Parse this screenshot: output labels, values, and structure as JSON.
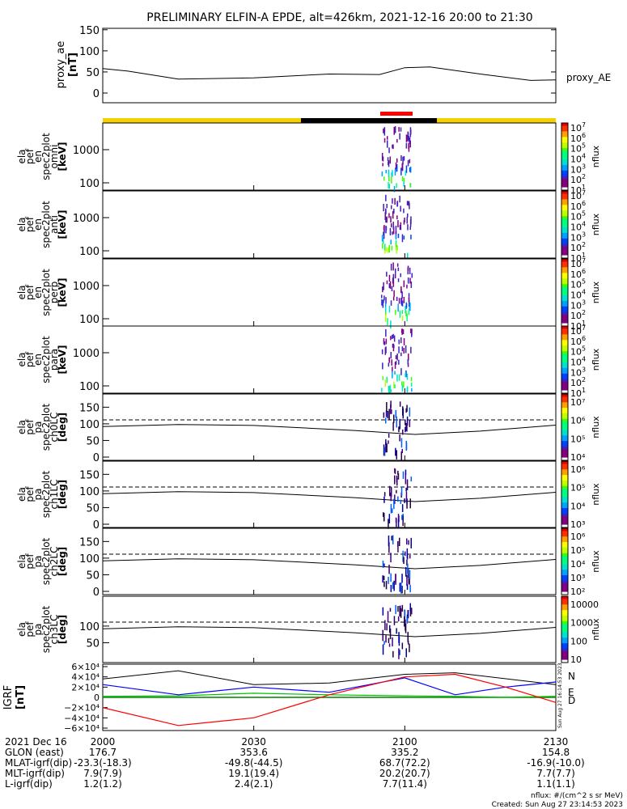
{
  "title": "PRELIMINARY ELFIN-A EPDE, alt=426km, 2021-12-16 20:00 to 21:30",
  "panels": {
    "proxy_ae": {
      "ylabel": [
        "proxy_ae",
        "[nT]"
      ],
      "yticks": [
        "150",
        "100",
        "50",
        "0"
      ],
      "series_label": "proxy_AE"
    },
    "energy": [
      {
        "ylabel": [
          "ela",
          "pef",
          "en",
          "spec2plot",
          "omni",
          "[keV]"
        ],
        "yticks": [
          "1000",
          "100"
        ],
        "cbar_exp": [
          "7",
          "6",
          "5",
          "4",
          "3",
          "2",
          "1"
        ],
        "cbar_label": "nflux"
      },
      {
        "ylabel": [
          "ela",
          "pef",
          "en",
          "spec2plot",
          "anti",
          "[keV]"
        ],
        "yticks": [
          "1000",
          "100"
        ],
        "cbar_exp": [
          "7",
          "6",
          "5",
          "4",
          "3",
          "2",
          "1"
        ],
        "cbar_label": "nflux"
      },
      {
        "ylabel": [
          "ela",
          "pef",
          "en",
          "spec2plot",
          "perp",
          "[keV]"
        ],
        "yticks": [
          "1000",
          "100"
        ],
        "cbar_exp": [
          "7",
          "6",
          "5",
          "4",
          "3",
          "2",
          "1"
        ],
        "cbar_label": "nflux"
      },
      {
        "ylabel": [
          "ela",
          "pef",
          "en",
          "spec2plot",
          "para",
          "[keV]"
        ],
        "yticks": [
          "1000",
          "100"
        ],
        "cbar_exp": [
          "7",
          "6",
          "5",
          "4",
          "3",
          "2",
          "1"
        ],
        "cbar_label": "nflux"
      }
    ],
    "pitch": [
      {
        "ylabel": [
          "ela",
          "pef",
          "pa",
          "spec2plot",
          "ch0LC",
          "[deg]"
        ],
        "yticks": [
          "150",
          "100",
          "50",
          "0"
        ],
        "cbar_ticks": [
          "10⁷",
          "10⁶",
          "10⁵",
          "10⁴"
        ],
        "cbar_label": "nflux"
      },
      {
        "ylabel": [
          "ela",
          "pef",
          "pa",
          "spec2plot",
          "ch1LC",
          "[deg]"
        ],
        "yticks": [
          "150",
          "100",
          "50",
          "0"
        ],
        "cbar_ticks": [
          "10⁶",
          "10⁵",
          "10⁴",
          "10³"
        ],
        "cbar_label": "nflux"
      },
      {
        "ylabel": [
          "ela",
          "pef",
          "pa",
          "spec2plot",
          "ch2LC",
          "[deg]"
        ],
        "yticks": [
          "150",
          "100",
          "50",
          "0"
        ],
        "cbar_ticks": [
          "10⁶",
          "10⁵",
          "10⁴",
          "10³",
          "10²"
        ],
        "cbar_label": "nflux"
      },
      {
        "ylabel": [
          "ela",
          "pef",
          "pa",
          "spec2plot",
          "ch3LC",
          "[deg]"
        ],
        "yticks": [
          "100",
          "50"
        ],
        "cbar_ticks": [
          "10000",
          "1000",
          "100",
          "10"
        ],
        "cbar_label": "nflux"
      }
    ],
    "igrf": {
      "ylabel": [
        "IGRF",
        "[nT]"
      ],
      "yticks": [
        "6×10⁴",
        "4×10⁴",
        "2×10⁴",
        "0",
        "−2×10⁴",
        "−4×10⁴",
        "−6×10⁴"
      ],
      "legend": [
        "N",
        "E",
        "D"
      ],
      "legend_colors": [
        "#0000ff",
        "#00c000",
        "#ff0000"
      ],
      "side_note": "Sun Aug 27 16:14:53 2023"
    }
  },
  "xaxis": {
    "ticks": [
      "2000",
      "2030",
      "2100",
      "2130"
    ],
    "rows": [
      {
        "label": "2021 Dec 16",
        "values": [
          "2000",
          "2030",
          "2100",
          "2130"
        ]
      },
      {
        "label": "GLON (east)",
        "values": [
          "176.7",
          "353.6",
          "335.2",
          "154.8"
        ]
      },
      {
        "label": "MLAT-igrf(dip)",
        "values": [
          "-23.3(-18.3)",
          "-49.8(-44.5)",
          "68.7(72.2)",
          "-16.9(-10.0)"
        ]
      },
      {
        "label": "MLT-igrf(dip)",
        "values": [
          "7.9(7.9)",
          "19.1(19.4)",
          "20.2(20.7)",
          "7.7(7.7)"
        ]
      },
      {
        "label": "L-igrf(dip)",
        "values": [
          "1.2(1.2)",
          "2.4(2.1)",
          "7.7(11.4)",
          "1.1(1.1)"
        ]
      }
    ]
  },
  "footer": {
    "units": "nflux: #/(cm^2 s sr MeV)",
    "created": "Created: Sun Aug 27 23:14:53 2023"
  },
  "colors": {
    "day_bar": "#f5d000",
    "night_bar": "#000000",
    "science_zone": "#ff0000"
  },
  "chart_data": [
    {
      "type": "line",
      "title": "PRELIMINARY ELFIN-A EPDE, alt=426km, 2021-12-16 20:00 to 21:30",
      "ylabel": "proxy_ae [nT]",
      "ylim": [
        0,
        150
      ],
      "x": [
        "20:00",
        "20:05",
        "20:15",
        "20:30",
        "20:45",
        "20:55",
        "21:00",
        "21:05",
        "21:15",
        "21:25",
        "21:30"
      ],
      "series": [
        {
          "name": "proxy_AE",
          "values": [
            58,
            52,
            33,
            36,
            45,
            44,
            60,
            62,
            45,
            30,
            31
          ]
        }
      ]
    },
    {
      "type": "line",
      "ylabel": "IGRF [nT]",
      "ylim": [
        -60000,
        60000
      ],
      "x": [
        "20:00",
        "20:15",
        "20:30",
        "20:45",
        "21:00",
        "21:10",
        "21:20",
        "21:30"
      ],
      "series": [
        {
          "name": "N",
          "values": [
            25000,
            5000,
            20000,
            10000,
            38000,
            5000,
            20000,
            30000
          ]
        },
        {
          "name": "E",
          "values": [
            2000,
            3000,
            8000,
            5000,
            3000,
            2000,
            0,
            2000
          ]
        },
        {
          "name": "D",
          "values": [
            -20000,
            -55000,
            -40000,
            5000,
            40000,
            45000,
            20000,
            -10000
          ]
        }
      ]
    }
  ]
}
